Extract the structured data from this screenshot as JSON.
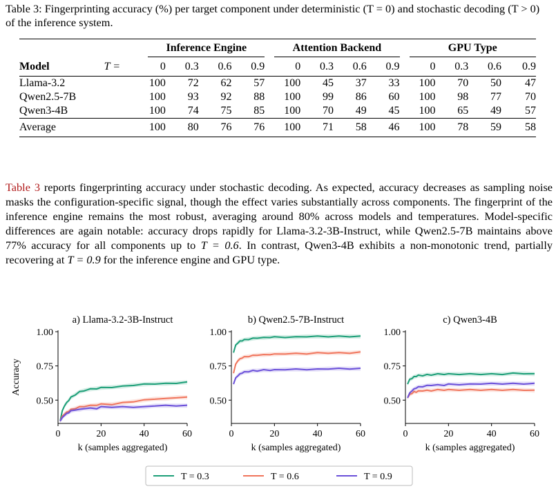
{
  "caption": {
    "label": "Table 3:",
    "text": "Fingerprinting accuracy (%) per target component under deterministic (T = 0) and stochastic decoding (T > 0) of the inference system."
  },
  "table": {
    "group_headers": [
      "Inference Engine",
      "Attention Backend",
      "GPU Type"
    ],
    "model_header": "Model",
    "t_header": "T =",
    "temps": [
      "0",
      "0.3",
      "0.6",
      "0.9"
    ],
    "rows": [
      {
        "model": "Llama-3.2",
        "values": [
          100,
          72,
          62,
          57,
          100,
          45,
          37,
          33,
          100,
          70,
          50,
          47
        ]
      },
      {
        "model": "Qwen2.5-7B",
        "values": [
          100,
          93,
          92,
          88,
          100,
          99,
          86,
          60,
          100,
          98,
          77,
          70
        ]
      },
      {
        "model": "Qwen3-4B",
        "values": [
          100,
          74,
          75,
          85,
          100,
          70,
          49,
          45,
          100,
          65,
          49,
          57
        ]
      }
    ],
    "average": {
      "model": "Average",
      "values": [
        100,
        80,
        76,
        76,
        100,
        71,
        58,
        46,
        100,
        78,
        59,
        58
      ]
    }
  },
  "paragraph": {
    "ref": "Table 3",
    "s1": " reports fingerprinting accuracy under stochastic decoding. As expected, accuracy decreases as sampling noise masks the configuration-specific signal, though the effect varies substantially across components. The fingerprint of the inference engine remains the most robust, averaging around 80% across models and temperatures. Model-specific differences are again notable: accuracy drops rapidly for Llama-3.2-3B-Instruct, while Qwen2.5-7B maintains above 77% accuracy for all components up to ",
    "m1": "T = 0.6",
    "s2": ". In contrast, Qwen3-4B exhibits a non-monotonic trend, partially recovering at ",
    "m2": "T = 0.9",
    "s3": " for the inference engine and GPU type."
  },
  "figure": {
    "ylabel": "Accuracy",
    "xlabel": "k (samples aggregated)",
    "colors": {
      "T = 0.3": "#1b9e77",
      "T = 0.6": "#f0735a",
      "T = 0.9": "#6a4fd9"
    },
    "legend": [
      "T = 0.3",
      "T = 0.6",
      "T = 0.9"
    ]
  },
  "chart_data": [
    {
      "type": "line",
      "title": "a) Llama-3.2-3B-Instruct",
      "xlabel": "k (samples aggregated)",
      "ylabel": "Accuracy",
      "xlim": [
        0,
        60
      ],
      "ylim": [
        0.33,
        1.0
      ],
      "xticks": [
        0,
        20,
        40,
        60
      ],
      "yticks": [
        0.5,
        0.75,
        1.0
      ],
      "ytick_labels": [
        "0.50",
        "0.75",
        "1.00"
      ],
      "x": [
        1,
        2,
        3,
        4,
        5,
        6,
        8,
        10,
        12,
        15,
        18,
        20,
        25,
        30,
        35,
        40,
        45,
        50,
        55,
        60
      ],
      "series": [
        {
          "name": "T = 0.3",
          "values": [
            0.35,
            0.42,
            0.46,
            0.48,
            0.5,
            0.52,
            0.54,
            0.56,
            0.57,
            0.58,
            0.585,
            0.59,
            0.595,
            0.6,
            0.61,
            0.615,
            0.62,
            0.62,
            0.625,
            0.63
          ]
        },
        {
          "name": "T = 0.6",
          "values": [
            0.35,
            0.38,
            0.4,
            0.41,
            0.42,
            0.43,
            0.44,
            0.45,
            0.455,
            0.46,
            0.465,
            0.47,
            0.47,
            0.48,
            0.49,
            0.5,
            0.51,
            0.51,
            0.52,
            0.52
          ]
        },
        {
          "name": "T = 0.9",
          "values": [
            0.35,
            0.37,
            0.39,
            0.4,
            0.41,
            0.42,
            0.43,
            0.43,
            0.44,
            0.44,
            0.44,
            0.45,
            0.45,
            0.45,
            0.45,
            0.45,
            0.46,
            0.46,
            0.46,
            0.46
          ]
        }
      ]
    },
    {
      "type": "line",
      "title": "b) Qwen2.5-7B-Instruct",
      "xlabel": "k (samples aggregated)",
      "ylabel": "Accuracy",
      "xlim": [
        0,
        60
      ],
      "ylim": [
        0.33,
        1.0
      ],
      "xticks": [
        0,
        20,
        40,
        60
      ],
      "yticks": [
        0.5,
        0.75,
        1.0
      ],
      "ytick_labels": [
        "0.50",
        "0.75",
        "1.00"
      ],
      "x": [
        1,
        2,
        3,
        4,
        5,
        6,
        8,
        10,
        12,
        15,
        18,
        20,
        25,
        30,
        35,
        40,
        45,
        50,
        55,
        60
      ],
      "series": [
        {
          "name": "T = 0.3",
          "values": [
            0.85,
            0.9,
            0.92,
            0.93,
            0.935,
            0.94,
            0.945,
            0.95,
            0.955,
            0.955,
            0.96,
            0.96,
            0.96,
            0.96,
            0.965,
            0.965,
            0.965,
            0.965,
            0.965,
            0.965
          ]
        },
        {
          "name": "T = 0.6",
          "values": [
            0.7,
            0.76,
            0.79,
            0.8,
            0.81,
            0.815,
            0.82,
            0.825,
            0.83,
            0.83,
            0.835,
            0.835,
            0.84,
            0.84,
            0.84,
            0.845,
            0.845,
            0.845,
            0.845,
            0.85
          ]
        },
        {
          "name": "T = 0.9",
          "values": [
            0.62,
            0.66,
            0.68,
            0.69,
            0.7,
            0.705,
            0.71,
            0.715,
            0.715,
            0.72,
            0.72,
            0.72,
            0.725,
            0.725,
            0.725,
            0.725,
            0.73,
            0.73,
            0.73,
            0.73
          ]
        }
      ]
    },
    {
      "type": "line",
      "title": "c) Qwen3-4B",
      "xlabel": "k (samples aggregated)",
      "ylabel": "Accuracy",
      "xlim": [
        0,
        60
      ],
      "ylim": [
        0.33,
        1.0
      ],
      "xticks": [
        0,
        20,
        40,
        60
      ],
      "yticks": [
        0.5,
        0.75,
        1.0
      ],
      "ytick_labels": [
        "0.50",
        "0.75",
        "1.00"
      ],
      "x": [
        1,
        2,
        3,
        4,
        5,
        6,
        8,
        10,
        12,
        15,
        18,
        20,
        25,
        30,
        35,
        40,
        45,
        50,
        55,
        60
      ],
      "series": [
        {
          "name": "T = 0.3",
          "values": [
            0.62,
            0.65,
            0.66,
            0.67,
            0.675,
            0.68,
            0.68,
            0.685,
            0.685,
            0.69,
            0.69,
            0.69,
            0.69,
            0.69,
            0.69,
            0.69,
            0.69,
            0.695,
            0.695,
            0.69
          ]
        },
        {
          "name": "T = 0.6",
          "values": [
            0.52,
            0.54,
            0.55,
            0.56,
            0.56,
            0.565,
            0.57,
            0.57,
            0.57,
            0.575,
            0.575,
            0.575,
            0.575,
            0.575,
            0.575,
            0.575,
            0.575,
            0.575,
            0.575,
            0.57
          ]
        },
        {
          "name": "T = 0.9",
          "values": [
            0.52,
            0.55,
            0.57,
            0.58,
            0.59,
            0.595,
            0.6,
            0.605,
            0.61,
            0.61,
            0.61,
            0.615,
            0.615,
            0.615,
            0.62,
            0.62,
            0.62,
            0.62,
            0.62,
            0.62
          ]
        }
      ]
    }
  ]
}
